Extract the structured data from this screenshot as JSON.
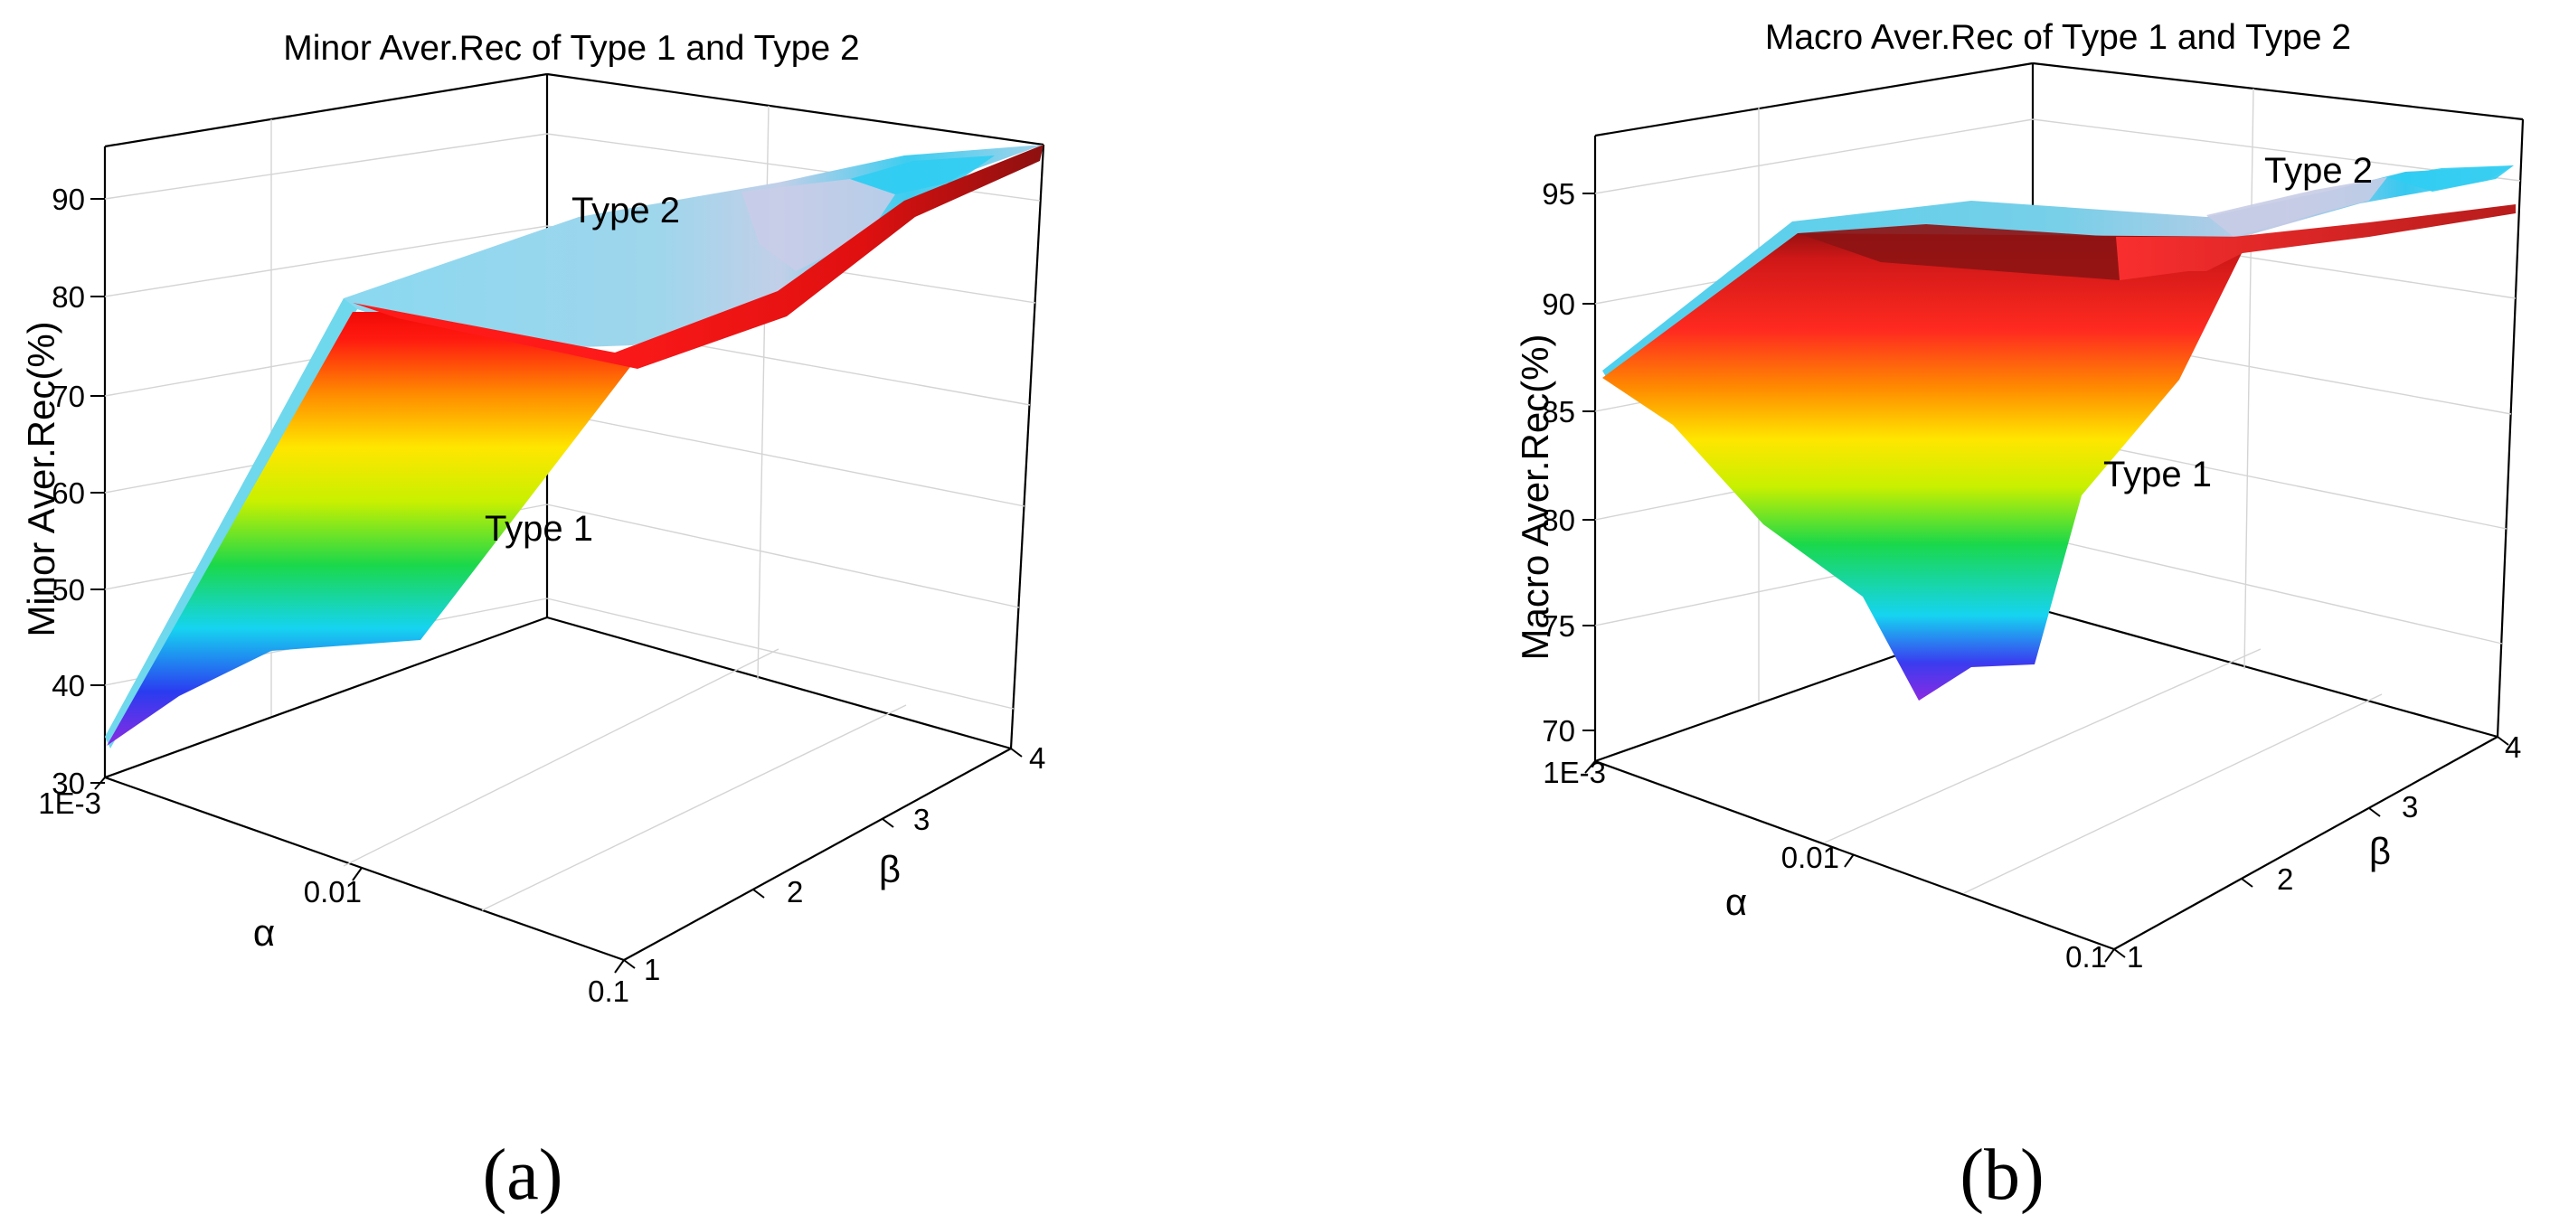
{
  "figure": {
    "panels": [
      "(a)",
      "(b)"
    ]
  },
  "chart_data": [
    {
      "type": "surface3d",
      "panel_label": "(a)",
      "title": "Minor Aver.Rec of Type 1 and Type 2",
      "zlabel": "Minor Aver.Rec(%)",
      "alpha_label": "α",
      "beta_label": "β",
      "alpha_ticks": [
        "1E-3",
        "0.01",
        "0.1"
      ],
      "beta_ticks": [
        "1",
        "2",
        "3",
        "4"
      ],
      "z_ticks": [
        "30",
        "40",
        "50",
        "60",
        "70",
        "80",
        "90"
      ],
      "zlim": [
        30,
        95
      ],
      "alpha": [
        "1E-3",
        "0.01",
        "0.1"
      ],
      "beta": [
        1,
        2,
        3,
        4
      ],
      "series": [
        {
          "name": "Type 2",
          "label": "Type 2",
          "values": [
            [
              35,
              80,
              90,
              95
            ],
            [
              50,
              82,
              91,
              95
            ],
            [
              55,
              85,
              92,
              95
            ]
          ]
        },
        {
          "name": "Type 1",
          "label": "Type 1",
          "values": [
            [
              34,
              79,
              88,
              95
            ],
            [
              48,
              81,
              90,
              95
            ],
            [
              53,
              83,
              91,
              95
            ]
          ]
        }
      ]
    },
    {
      "type": "surface3d",
      "panel_label": "(b)",
      "title": "Macro Aver.Rec of Type 1 and Type 2",
      "zlabel": "Macro Aver.Rec(%)",
      "alpha_label": "α",
      "beta_label": "β",
      "alpha_ticks": [
        "1E-3",
        "0.01",
        "0.1"
      ],
      "beta_ticks": [
        "1",
        "2",
        "3",
        "4"
      ],
      "z_ticks": [
        "70",
        "75",
        "80",
        "85",
        "90",
        "95"
      ],
      "zlim": [
        68,
        97
      ],
      "alpha": [
        "1E-3",
        "0.01",
        "0.1"
      ],
      "beta": [
        1,
        2,
        3,
        4
      ],
      "series": [
        {
          "name": "Type 2",
          "label": "Type 2",
          "values": [
            [
              87,
              95,
              95.5,
              96
            ],
            [
              80,
              94,
              95.5,
              96
            ],
            [
              76,
              93.5,
              95,
              96
            ]
          ]
        },
        {
          "name": "Type 1",
          "label": "Type 1",
          "values": [
            [
              86.5,
              94,
              94.2,
              94
            ],
            [
              78,
              74,
              93,
              94
            ],
            [
              74,
              73,
              92.5,
              94
            ]
          ]
        }
      ]
    }
  ]
}
